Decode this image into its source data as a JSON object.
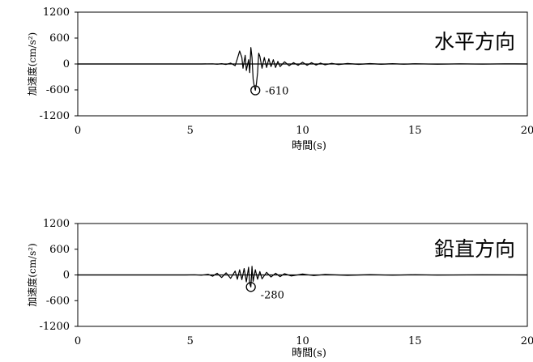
{
  "chart_data": [
    {
      "type": "line",
      "label": "水平方向",
      "xlabel": "時間(s)",
      "ylabel": "加速度(cm/s²)",
      "xlim": [
        0,
        20
      ],
      "ylim": [
        -1200,
        1200
      ],
      "xticks": [
        0,
        5,
        10,
        15,
        20
      ],
      "yticks": [
        1200,
        600,
        0,
        -600,
        -1200
      ],
      "grid": false,
      "peak": {
        "x": 7.9,
        "y": -610,
        "label": "-610"
      },
      "series": [
        {
          "values": [
            [
              0,
              0
            ],
            [
              2.0,
              0
            ],
            [
              4.0,
              0
            ],
            [
              5.5,
              0
            ],
            [
              6.0,
              3
            ],
            [
              6.2,
              -5
            ],
            [
              6.4,
              8
            ],
            [
              6.6,
              -12
            ],
            [
              6.8,
              20
            ],
            [
              7.0,
              -40
            ],
            [
              7.1,
              120
            ],
            [
              7.2,
              300
            ],
            [
              7.3,
              150
            ],
            [
              7.35,
              -100
            ],
            [
              7.45,
              200
            ],
            [
              7.5,
              -150
            ],
            [
              7.6,
              100
            ],
            [
              7.65,
              -200
            ],
            [
              7.7,
              380
            ],
            [
              7.75,
              150
            ],
            [
              7.8,
              -350
            ],
            [
              7.85,
              -500
            ],
            [
              7.9,
              -610
            ],
            [
              7.95,
              -450
            ],
            [
              8.0,
              -200
            ],
            [
              8.05,
              250
            ],
            [
              8.1,
              180
            ],
            [
              8.2,
              -100
            ],
            [
              8.3,
              150
            ],
            [
              8.4,
              -80
            ],
            [
              8.5,
              120
            ],
            [
              8.6,
              -60
            ],
            [
              8.7,
              100
            ],
            [
              8.8,
              -80
            ],
            [
              8.9,
              60
            ],
            [
              9.0,
              -60
            ],
            [
              9.2,
              50
            ],
            [
              9.4,
              -40
            ],
            [
              9.6,
              30
            ],
            [
              9.8,
              -30
            ],
            [
              10.0,
              40
            ],
            [
              10.2,
              -30
            ],
            [
              10.4,
              30
            ],
            [
              10.6,
              -25
            ],
            [
              10.8,
              20
            ],
            [
              11.0,
              -20
            ],
            [
              11.3,
              15
            ],
            [
              11.6,
              -15
            ],
            [
              12.0,
              12
            ],
            [
              12.5,
              -10
            ],
            [
              13.0,
              10
            ],
            [
              13.5,
              -8
            ],
            [
              14.0,
              8
            ],
            [
              14.5,
              -6
            ],
            [
              15.0,
              6
            ],
            [
              16.0,
              -5
            ],
            [
              17.0,
              4
            ],
            [
              18.0,
              -3
            ],
            [
              19.0,
              3
            ],
            [
              20.0,
              0
            ]
          ]
        }
      ]
    },
    {
      "type": "line",
      "label": "鉛直方向",
      "xlabel": "時間(s)",
      "ylabel": "加速度(cm/s²)",
      "xlim": [
        0,
        20
      ],
      "ylim": [
        -1200,
        1200
      ],
      "xticks": [
        0,
        5,
        10,
        15,
        20
      ],
      "yticks": [
        1200,
        600,
        0,
        -600,
        -1200
      ],
      "grid": false,
      "peak": {
        "x": 7.7,
        "y": -280,
        "label": "-280"
      },
      "series": [
        {
          "values": [
            [
              0,
              0
            ],
            [
              3.0,
              0
            ],
            [
              4.8,
              0
            ],
            [
              5.2,
              3
            ],
            [
              5.5,
              -5
            ],
            [
              5.8,
              15
            ],
            [
              6.0,
              -30
            ],
            [
              6.2,
              40
            ],
            [
              6.4,
              -60
            ],
            [
              6.6,
              50
            ],
            [
              6.8,
              -80
            ],
            [
              7.0,
              90
            ],
            [
              7.1,
              -100
            ],
            [
              7.2,
              120
            ],
            [
              7.3,
              -110
            ],
            [
              7.4,
              150
            ],
            [
              7.5,
              -160
            ],
            [
              7.6,
              180
            ],
            [
              7.65,
              -200
            ],
            [
              7.7,
              -280
            ],
            [
              7.75,
              200
            ],
            [
              7.8,
              -150
            ],
            [
              7.9,
              120
            ],
            [
              8.0,
              -100
            ],
            [
              8.1,
              80
            ],
            [
              8.2,
              -90
            ],
            [
              8.4,
              60
            ],
            [
              8.6,
              -50
            ],
            [
              8.8,
              40
            ],
            [
              9.0,
              -40
            ],
            [
              9.2,
              30
            ],
            [
              9.5,
              -25
            ],
            [
              10.0,
              20
            ],
            [
              10.5,
              -15
            ],
            [
              11.0,
              12
            ],
            [
              12.0,
              -10
            ],
            [
              13.0,
              8
            ],
            [
              14.0,
              -6
            ],
            [
              15.0,
              5
            ],
            [
              16.0,
              -4
            ],
            [
              18.0,
              3
            ],
            [
              20.0,
              0
            ]
          ]
        }
      ]
    }
  ]
}
